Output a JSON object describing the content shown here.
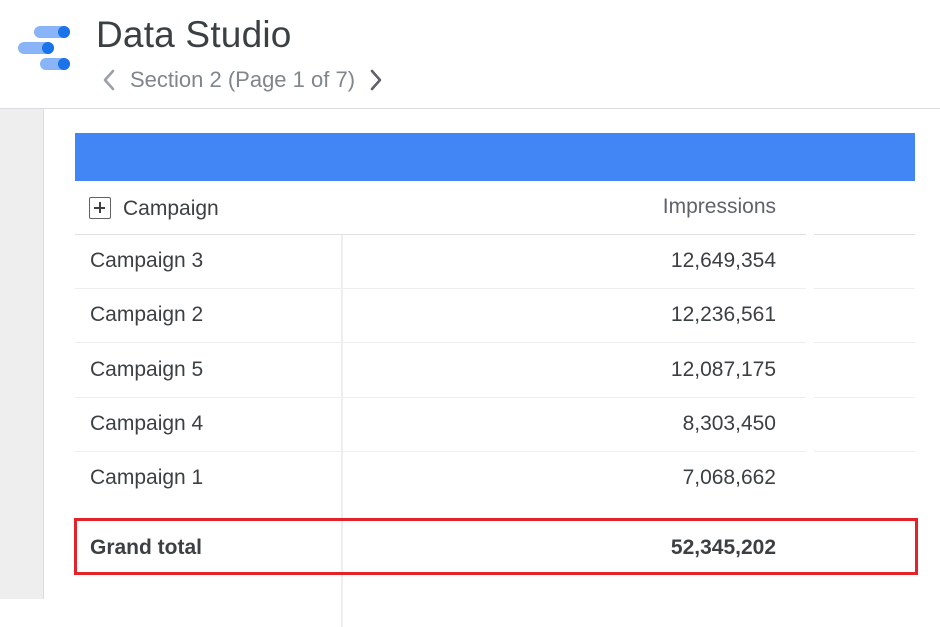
{
  "header": {
    "app_title": "Data Studio",
    "logo_icon": "data-studio-logo-icon",
    "pager": {
      "label": "Section 2 (Page 1 of 7)",
      "prev_icon": "chevron-left-icon",
      "next_icon": "chevron-right-icon"
    }
  },
  "colors": {
    "table_header_band": "#4285f4",
    "highlight": "#e3222a",
    "logo_dark": "#1a73e8",
    "logo_light": "#8ab4f8"
  },
  "table": {
    "columns": {
      "dimension": "Campaign",
      "metric": "Impressions"
    },
    "expand_icon": "plus-box-icon",
    "rows": [
      {
        "name": "Campaign 3",
        "value": "12,649,354"
      },
      {
        "name": "Campaign 2",
        "value": "12,236,561"
      },
      {
        "name": "Campaign 5",
        "value": "12,087,175"
      },
      {
        "name": "Campaign 4",
        "value": "8,303,450"
      },
      {
        "name": "Campaign 1",
        "value": "7,068,662"
      }
    ],
    "total": {
      "label": "Grand total",
      "value": "52,345,202"
    }
  }
}
